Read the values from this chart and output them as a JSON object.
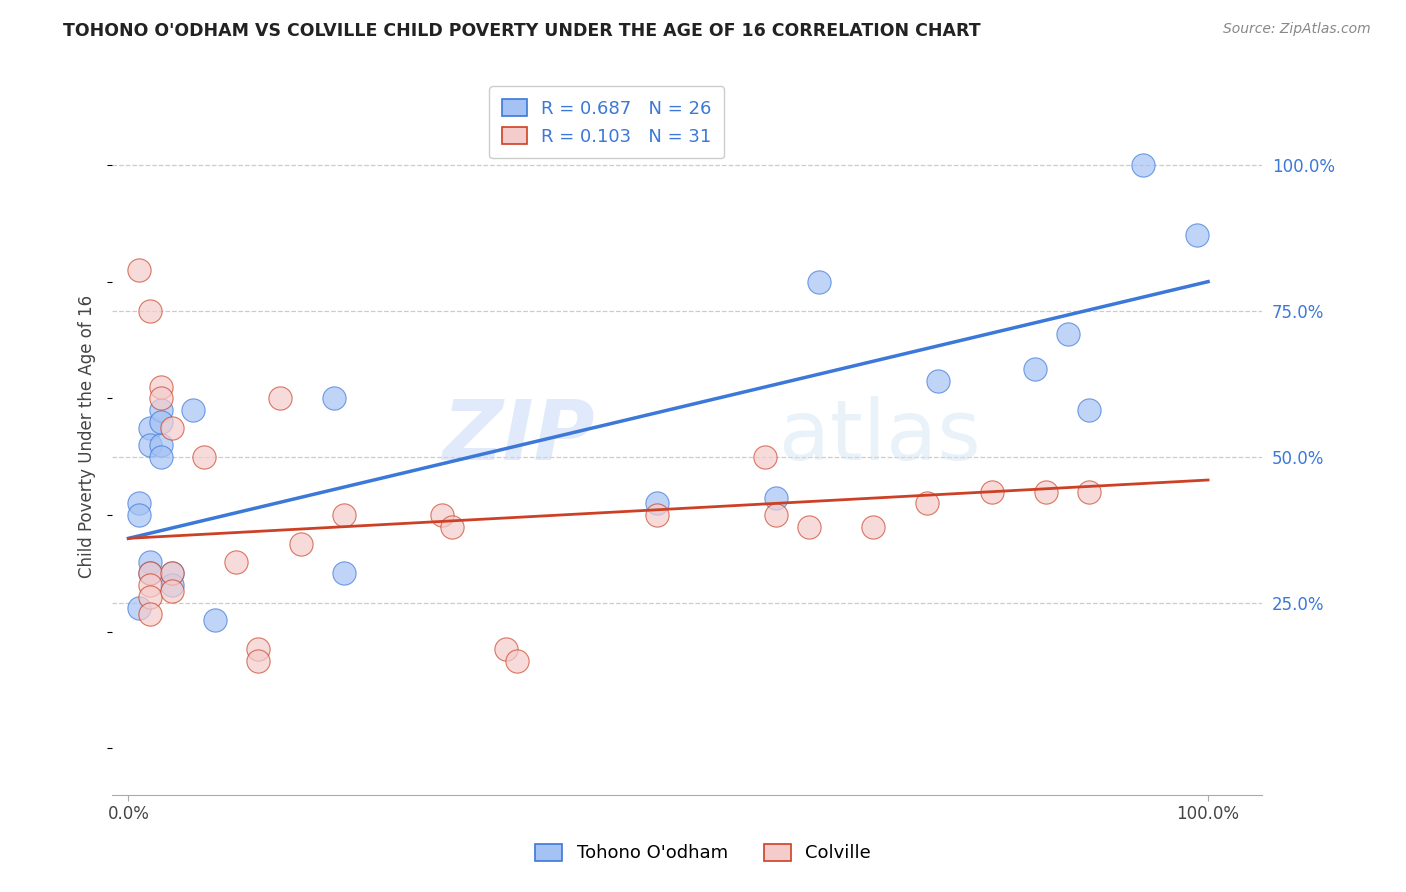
{
  "title": "TOHONO O'ODHAM VS COLVILLE CHILD POVERTY UNDER THE AGE OF 16 CORRELATION CHART",
  "source": "Source: ZipAtlas.com",
  "ylabel": "Child Poverty Under the Age of 16",
  "legend_label_1": "Tohono O'odham",
  "legend_label_2": "Colville",
  "R1": 0.687,
  "N1": 26,
  "R2": 0.103,
  "N2": 31,
  "color_blue": "#a4c2f4",
  "color_pink": "#f4cccc",
  "line_color_blue": "#3c78d8",
  "line_color_pink": "#cc4125",
  "watermark_zip": "ZIP",
  "watermark_atlas": "atlas",
  "blue_points": [
    [
      0.01,
      0.42
    ],
    [
      0.01,
      0.4
    ],
    [
      0.02,
      0.55
    ],
    [
      0.02,
      0.52
    ],
    [
      0.03,
      0.52
    ],
    [
      0.03,
      0.5
    ],
    [
      0.03,
      0.58
    ],
    [
      0.03,
      0.56
    ],
    [
      0.04,
      0.3
    ],
    [
      0.04,
      0.28
    ],
    [
      0.06,
      0.58
    ],
    [
      0.08,
      0.22
    ],
    [
      0.19,
      0.6
    ],
    [
      0.2,
      0.3
    ],
    [
      0.49,
      0.42
    ],
    [
      0.6,
      0.43
    ],
    [
      0.64,
      0.8
    ],
    [
      0.75,
      0.63
    ],
    [
      0.84,
      0.65
    ],
    [
      0.87,
      0.71
    ],
    [
      0.89,
      0.58
    ],
    [
      0.94,
      1.0
    ],
    [
      0.99,
      0.88
    ],
    [
      0.02,
      0.32
    ],
    [
      0.02,
      0.3
    ],
    [
      0.01,
      0.24
    ]
  ],
  "pink_points": [
    [
      0.01,
      0.82
    ],
    [
      0.02,
      0.75
    ],
    [
      0.02,
      0.3
    ],
    [
      0.02,
      0.28
    ],
    [
      0.02,
      0.26
    ],
    [
      0.02,
      0.23
    ],
    [
      0.03,
      0.62
    ],
    [
      0.03,
      0.6
    ],
    [
      0.04,
      0.55
    ],
    [
      0.04,
      0.3
    ],
    [
      0.04,
      0.27
    ],
    [
      0.07,
      0.5
    ],
    [
      0.1,
      0.32
    ],
    [
      0.12,
      0.17
    ],
    [
      0.12,
      0.15
    ],
    [
      0.14,
      0.6
    ],
    [
      0.16,
      0.35
    ],
    [
      0.2,
      0.4
    ],
    [
      0.29,
      0.4
    ],
    [
      0.3,
      0.38
    ],
    [
      0.35,
      0.17
    ],
    [
      0.36,
      0.15
    ],
    [
      0.49,
      0.4
    ],
    [
      0.59,
      0.5
    ],
    [
      0.6,
      0.4
    ],
    [
      0.63,
      0.38
    ],
    [
      0.69,
      0.38
    ],
    [
      0.74,
      0.42
    ],
    [
      0.8,
      0.44
    ],
    [
      0.85,
      0.44
    ],
    [
      0.89,
      0.44
    ]
  ],
  "blue_line_x": [
    0.0,
    1.0
  ],
  "blue_line_y": [
    0.36,
    0.8
  ],
  "pink_line_x": [
    0.0,
    1.0
  ],
  "pink_line_y": [
    0.36,
    0.46
  ],
  "xlim": [
    -0.015,
    1.05
  ],
  "ylim": [
    -0.08,
    1.15
  ],
  "yticks": [
    0.25,
    0.5,
    0.75,
    1.0
  ],
  "xticks": [
    0.0,
    1.0
  ],
  "xtick_labels": [
    "0.0%",
    "100.0%"
  ],
  "ytick_labels": [
    "25.0%",
    "50.0%",
    "75.0%",
    "100.0%"
  ]
}
